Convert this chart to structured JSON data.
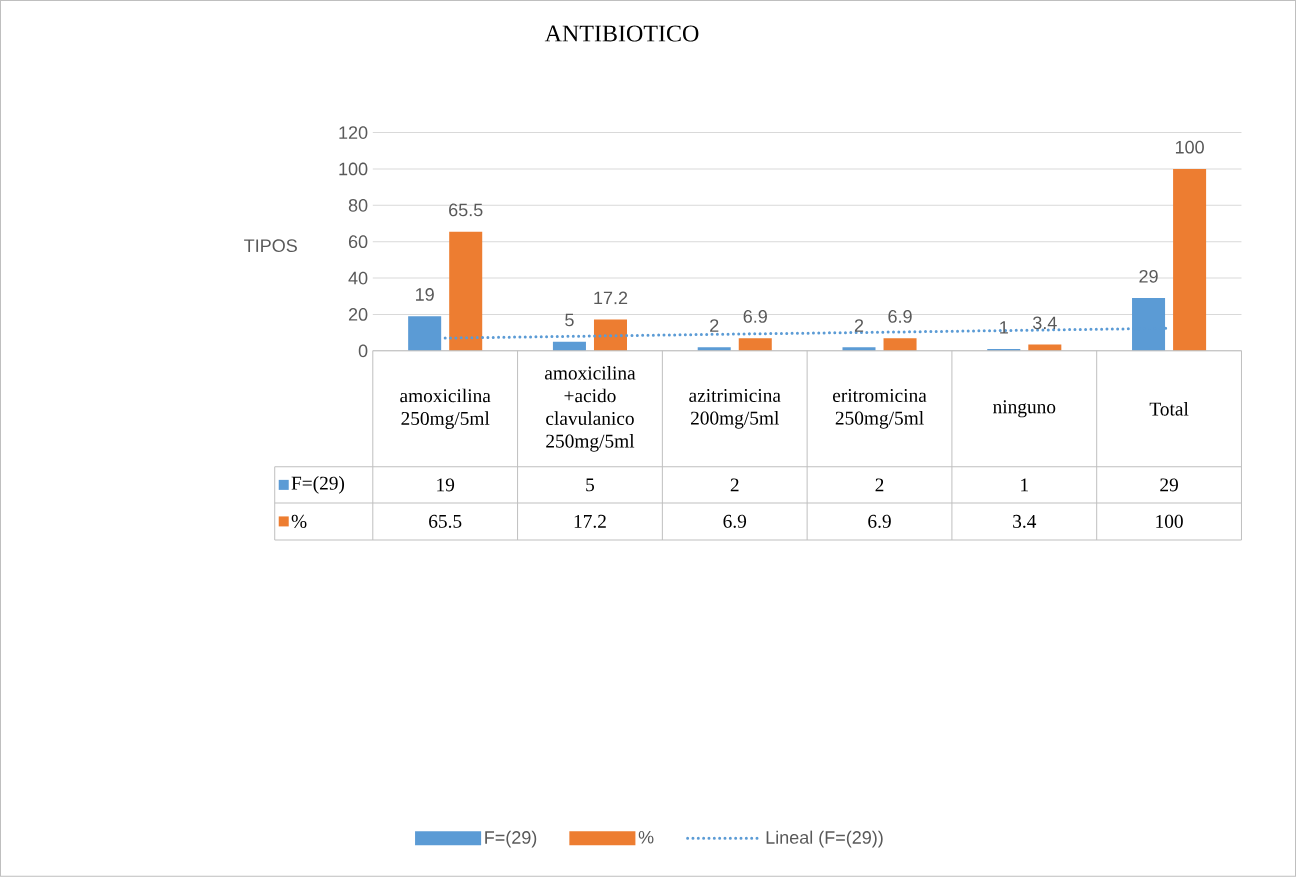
{
  "chart_data": {
    "type": "bar",
    "title": "ANTIBIOTICO",
    "ylabel": "TIPOS",
    "categories": [
      "amoxicilina 250mg/5ml",
      "amoxicilina +acido clavulanico 250mg/5ml",
      "azitrimicina 200mg/5ml",
      "eritromicina 250mg/5ml",
      "ninguno",
      "Total"
    ],
    "series": [
      {
        "name": "F=(29)",
        "color": "#5b9bd5",
        "values": [
          19,
          5,
          2,
          2,
          1,
          29
        ],
        "value_labels": [
          "19",
          "5",
          "2",
          "2",
          "1",
          "29"
        ]
      },
      {
        "name": "%",
        "color": "#ed7d31",
        "values": [
          65.5,
          17.2,
          6.9,
          6.9,
          3.4,
          100
        ],
        "value_labels": [
          "65.5",
          "17.2",
          "6.9",
          "6.9",
          "3.4",
          "100"
        ]
      },
      {
        "name": "Lineal (F=(29))",
        "type": "line",
        "color": "#5b9bd5",
        "line_style": "dotted",
        "values": [
          7,
          8.1,
          9.2,
          10.2,
          11.3,
          12.4
        ]
      }
    ],
    "ylim": [
      0,
      120
    ],
    "yticks": [
      0,
      20,
      40,
      60,
      80,
      100,
      120
    ],
    "grid": "y",
    "legend": "bottom"
  }
}
